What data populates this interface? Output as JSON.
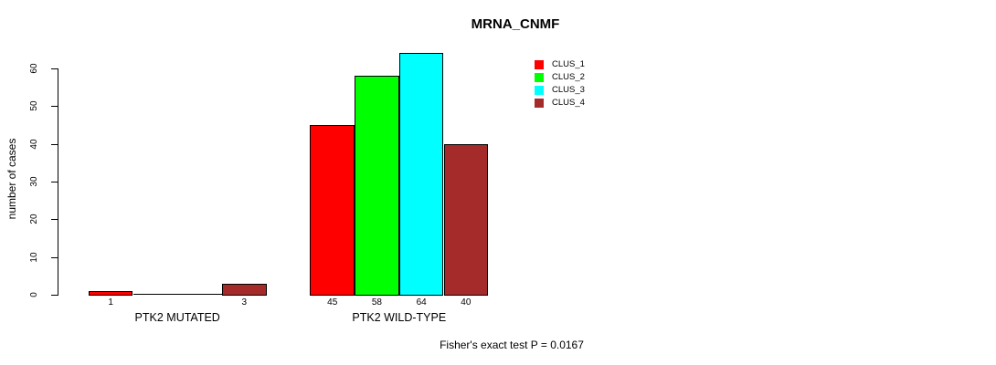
{
  "chart_data": {
    "type": "bar",
    "title": "MRNA_CNMF",
    "ylabel": "number of cases",
    "xlabel": "",
    "categories": [
      "PTK2 MUTATED",
      "PTK2 WILD-TYPE"
    ],
    "series": [
      {
        "name": "CLUS_1",
        "color": "#FF0000",
        "values": [
          1,
          45
        ]
      },
      {
        "name": "CLUS_2",
        "color": "#00FF00",
        "values": [
          0,
          58
        ]
      },
      {
        "name": "CLUS_3",
        "color": "#00FFFF",
        "values": [
          0,
          64
        ]
      },
      {
        "name": "CLUS_4",
        "color": "#A52A2A",
        "values": [
          3,
          40
        ]
      }
    ],
    "ylim": [
      0,
      60
    ],
    "yticks": [
      0,
      10,
      20,
      30,
      40,
      50,
      60
    ],
    "bar_value_labels_shown": true,
    "zero_value_labels_hidden": true,
    "legend_entries": [
      "CLUS_1",
      "CLUS_2",
      "CLUS_3",
      "CLUS_4"
    ],
    "legend_position": "inside-top-right",
    "grid": false,
    "annotation": "Fisher's exact test P = 0.0167"
  }
}
